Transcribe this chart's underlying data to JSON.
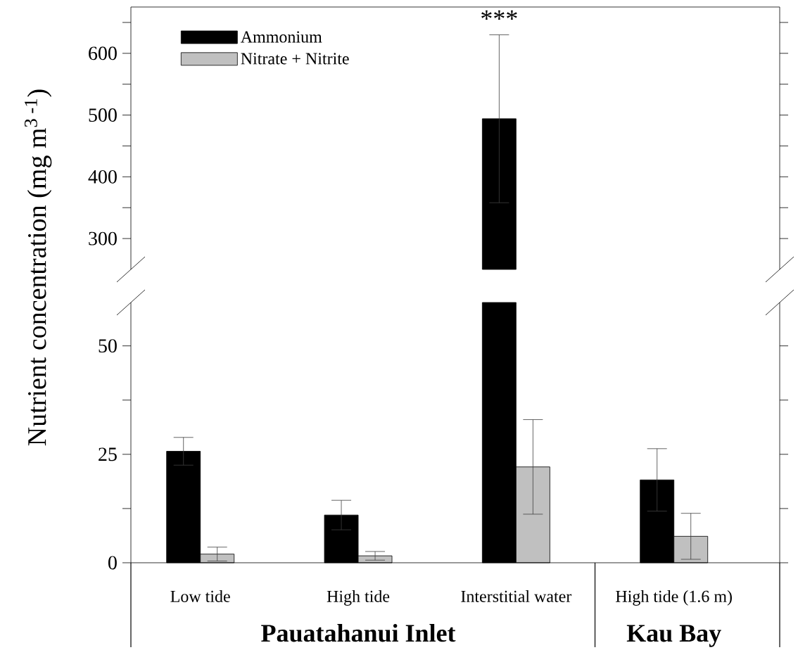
{
  "chart_data": [
    {
      "type": "bar",
      "categories": [
        null,
        null,
        null,
        null
      ],
      "series": [
        {
          "name": "Ammonium",
          "color": "#000000",
          "values": [
            null,
            null,
            494,
            null
          ],
          "errors": [
            null,
            null,
            136,
            null
          ]
        },
        {
          "name": "Nitrate + Nitrite",
          "color": "#c0c0c0",
          "values": [
            null,
            null,
            null,
            null
          ]
        }
      ],
      "ylim": [
        250,
        675
      ],
      "yticks": [
        300,
        {
          "value": 350,
          "label": null
        },
        400,
        {
          "value": 450,
          "label": null
        },
        500,
        {
          "value": 550,
          "label": null
        },
        600,
        {
          "value": 650,
          "label": null
        }
      ],
      "legend": "top left",
      "tick_labels": "y",
      "annotations": [
        "***"
      ]
    },
    {
      "type": "bar",
      "categories": [
        "Low tide",
        "High tide",
        "Interstitial water",
        "High tide (1.6 m)"
      ],
      "series": [
        {
          "color": "#000000",
          "values": [
            25.7,
            11.0,
            60,
            19.1
          ],
          "errors": [
            3.2,
            3.4,
            null,
            7.2
          ]
        },
        {
          "color": "#c0c0c0",
          "values": [
            2.0,
            1.6,
            22.1,
            6.1
          ],
          "errors": [
            1.6,
            1.0,
            10.9,
            5.3
          ]
        }
      ],
      "ylim": [
        0,
        60
      ],
      "yticks": [
        0,
        {
          "value": 12.5,
          "label": null
        },
        25,
        {
          "value": 37.5,
          "label": null
        },
        50
      ],
      "ylabel": "Nutrient concentration (mg m$^{3 -1}$)",
      "annotations": [
        "Pauatahanui Inlet",
        "Kau Bay"
      ]
    }
  ]
}
